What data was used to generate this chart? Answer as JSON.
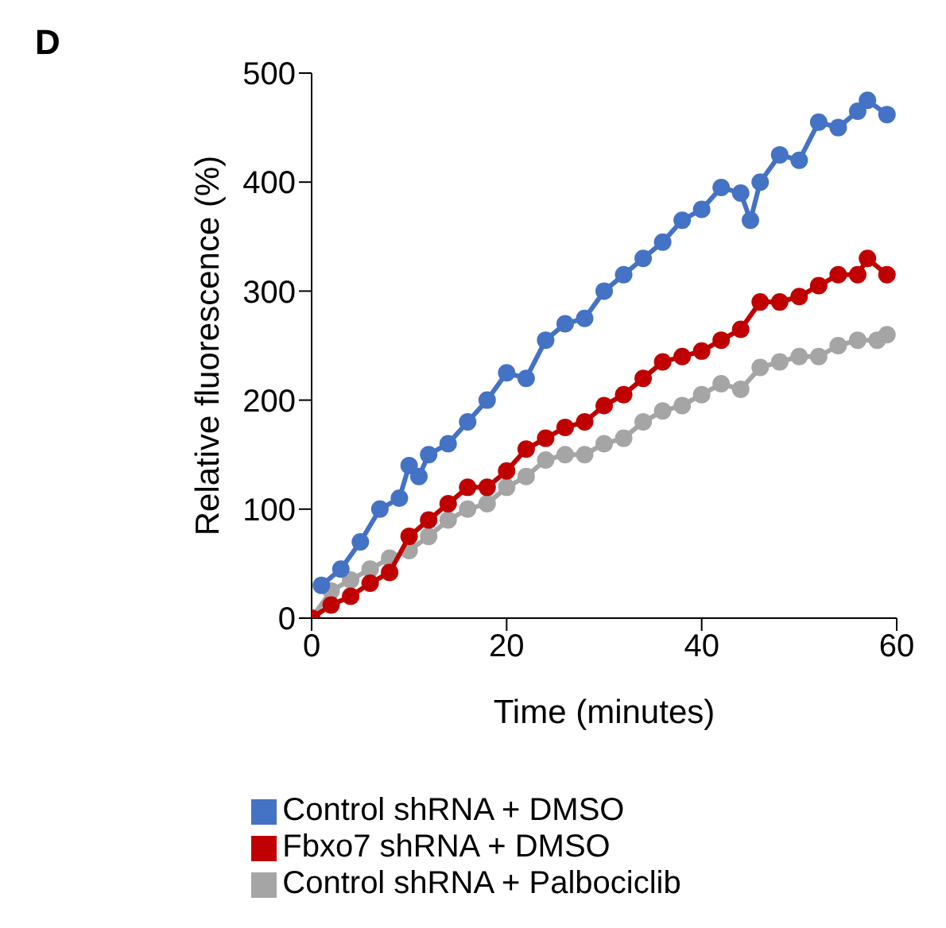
{
  "chart_data": {
    "type": "line",
    "xlabel": "Time (minutes)",
    "ylabel": "Relative fluorescence (%)",
    "annotations": [
      "D"
    ],
    "xlim": [
      0,
      60
    ],
    "xticks": [
      0,
      20,
      40,
      60
    ],
    "ylim": [
      0,
      500
    ],
    "yticks": [
      0,
      100,
      200,
      300,
      400,
      500
    ],
    "grid": false,
    "legend": "bottom",
    "marker": "circle",
    "line_style": "solid",
    "series": [
      {
        "name": "Control shRNA + DMSO",
        "color": "#4472c4",
        "x": [
          1,
          3,
          5,
          7,
          9,
          10,
          11,
          12,
          14,
          16,
          18,
          20,
          22,
          24,
          26,
          28,
          30,
          32,
          34,
          36,
          38,
          40,
          42,
          44,
          45,
          46,
          48,
          50,
          52,
          54,
          56,
          57,
          59
        ],
        "values": [
          30,
          45,
          70,
          100,
          110,
          140,
          130,
          150,
          160,
          180,
          200,
          225,
          220,
          255,
          270,
          275,
          300,
          315,
          330,
          345,
          365,
          375,
          395,
          390,
          365,
          400,
          425,
          420,
          455,
          450,
          465,
          475,
          462
        ]
      },
      {
        "name": "Fbxo7 shRNA + DMSO",
        "color": "#c00000",
        "x": [
          0,
          2,
          4,
          6,
          8,
          10,
          12,
          14,
          16,
          18,
          20,
          22,
          24,
          26,
          28,
          30,
          32,
          34,
          36,
          38,
          40,
          42,
          44,
          46,
          48,
          50,
          52,
          54,
          56,
          57,
          59
        ],
        "values": [
          0,
          12,
          20,
          32,
          42,
          75,
          90,
          105,
          120,
          120,
          135,
          155,
          165,
          175,
          180,
          195,
          205,
          220,
          235,
          240,
          245,
          255,
          265,
          290,
          290,
          295,
          305,
          315,
          315,
          330,
          315
        ]
      },
      {
        "name": "Control shRNA + Palbociclib",
        "color": "#a5a5a5",
        "x": [
          0,
          2,
          4,
          6,
          8,
          10,
          12,
          14,
          16,
          18,
          20,
          22,
          24,
          26,
          28,
          30,
          32,
          34,
          36,
          38,
          40,
          42,
          44,
          46,
          48,
          50,
          52,
          54,
          56,
          58,
          59
        ],
        "values": [
          0,
          25,
          35,
          45,
          55,
          62,
          75,
          90,
          100,
          105,
          120,
          130,
          145,
          150,
          150,
          160,
          165,
          180,
          190,
          195,
          205,
          215,
          210,
          230,
          235,
          240,
          240,
          250,
          255,
          255,
          260
        ]
      }
    ]
  }
}
